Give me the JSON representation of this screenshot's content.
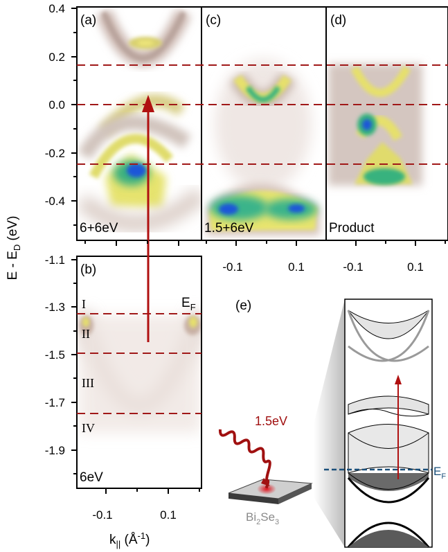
{
  "panels": {
    "a": {
      "label": "(a)",
      "energy": "6+6eV"
    },
    "b": {
      "label": "(b)",
      "energy": "6eV"
    },
    "c": {
      "label": "(c)",
      "energy": "1.5+6eV"
    },
    "d": {
      "label": "(d)",
      "energy": "Product"
    },
    "e": {
      "label": "(e)"
    }
  },
  "axes": {
    "ylabel": "E - E",
    "ylabel_sub": "D",
    "ylabel_unit": " (eV)",
    "xlabel": "k",
    "xlabel_sub": "||",
    "xlabel_unit_pre": " (Å",
    "xlabel_unit_sup": "-1",
    "xlabel_unit_post": ")",
    "upper_y_ticks": [
      "0.4",
      "0.2",
      "0.0",
      "-0.2",
      "-0.4"
    ],
    "lower_y_ticks": [
      "-1.1",
      "-1.3",
      "-1.5",
      "-1.7",
      "-1.9"
    ],
    "x_ticks": [
      "-0.1",
      "0.1"
    ]
  },
  "regions": [
    "I",
    "II",
    "III",
    "IV"
  ],
  "fermi_label": "E",
  "fermi_sub": "F",
  "schematic": {
    "pump_energy": "1.5eV",
    "sample_pre": "Bi",
    "sample_sub1": "2",
    "sample_mid": "Se",
    "sample_sub2": "3",
    "fermi_label": "E",
    "fermi_sub": "F"
  },
  "colors": {
    "guide_lines": "#a01818",
    "arrow": "#b01010",
    "fermi_dashed": "#1a4f7a",
    "arpes_intensity_low": "#d9c6c0",
    "arpes_intensity_mid": "#e3e07a",
    "arpes_intensity_high": "#1c57d8"
  }
}
